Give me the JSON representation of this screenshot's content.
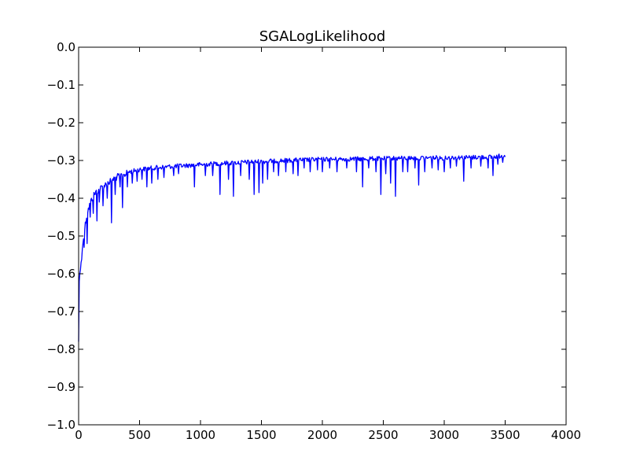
{
  "chart_data": {
    "type": "line",
    "title": "SGALogLikelihood",
    "xlabel": "",
    "ylabel": "",
    "xlim": [
      0,
      4000
    ],
    "ylim": [
      -1.0,
      0.0
    ],
    "x_ticks": [
      0,
      500,
      1000,
      1500,
      2000,
      2500,
      3000,
      3500,
      4000
    ],
    "x_tick_labels": [
      "0",
      "500",
      "1000",
      "1500",
      "2000",
      "2500",
      "3000",
      "3500",
      "4000"
    ],
    "y_ticks": [
      0.0,
      -0.1,
      -0.2,
      -0.3,
      -0.4,
      -0.5,
      -0.6,
      -0.7,
      -0.8,
      -0.9,
      -1.0
    ],
    "y_tick_labels": [
      "0.0",
      "−0.1",
      "−0.2",
      "−0.3",
      "−0.4",
      "−0.5",
      "−0.6",
      "−0.7",
      "−0.8",
      "−0.9",
      "−1.0"
    ],
    "grid": false,
    "color": "#0000ff",
    "series": [
      {
        "x": [
          0,
          5,
          10,
          15,
          20,
          25,
          30,
          40,
          50,
          60,
          70,
          80,
          90,
          100,
          120,
          140,
          160,
          180,
          200,
          250,
          300,
          350,
          400,
          450,
          500,
          600,
          700,
          800,
          900,
          1000,
          1100,
          1200,
          1300,
          1400,
          1500,
          1600,
          1700,
          1800,
          1900,
          2000,
          2100,
          2200,
          2300,
          2400,
          2500,
          2600,
          2700,
          2800,
          2900,
          3000,
          3100,
          3200,
          3300,
          3400,
          3500
        ],
        "y": [
          -0.78,
          -0.62,
          -0.6,
          -0.59,
          -0.57,
          -0.55,
          -0.53,
          -0.49,
          -0.47,
          -0.45,
          -0.43,
          -0.42,
          -0.41,
          -0.4,
          -0.385,
          -0.375,
          -0.37,
          -0.365,
          -0.36,
          -0.348,
          -0.337,
          -0.33,
          -0.325,
          -0.322,
          -0.318,
          -0.314,
          -0.311,
          -0.309,
          -0.307,
          -0.305,
          -0.303,
          -0.301,
          -0.3,
          -0.298,
          -0.297,
          -0.295,
          -0.294,
          -0.293,
          -0.292,
          -0.291,
          -0.291,
          -0.29,
          -0.29,
          -0.289,
          -0.289,
          -0.288,
          -0.288,
          -0.287,
          -0.287,
          -0.287,
          -0.286,
          -0.286,
          -0.285,
          -0.285,
          -0.28
        ]
      }
    ],
    "dips": [
      [
        45,
        -0.53
      ],
      [
        70,
        -0.52
      ],
      [
        95,
        -0.45
      ],
      [
        120,
        -0.44
      ],
      [
        150,
        -0.46
      ],
      [
        170,
        -0.41
      ],
      [
        200,
        -0.42
      ],
      [
        235,
        -0.4
      ],
      [
        270,
        -0.465
      ],
      [
        300,
        -0.39
      ],
      [
        340,
        -0.37
      ],
      [
        360,
        -0.425
      ],
      [
        400,
        -0.37
      ],
      [
        440,
        -0.36
      ],
      [
        480,
        -0.355
      ],
      [
        520,
        -0.35
      ],
      [
        560,
        -0.37
      ],
      [
        600,
        -0.36
      ],
      [
        650,
        -0.35
      ],
      [
        700,
        -0.345
      ],
      [
        780,
        -0.34
      ],
      [
        820,
        -0.335
      ],
      [
        950,
        -0.37
      ],
      [
        1040,
        -0.34
      ],
      [
        1100,
        -0.34
      ],
      [
        1160,
        -0.39
      ],
      [
        1230,
        -0.35
      ],
      [
        1270,
        -0.395
      ],
      [
        1330,
        -0.34
      ],
      [
        1400,
        -0.35
      ],
      [
        1440,
        -0.39
      ],
      [
        1480,
        -0.385
      ],
      [
        1510,
        -0.36
      ],
      [
        1550,
        -0.35
      ],
      [
        1600,
        -0.33
      ],
      [
        1640,
        -0.34
      ],
      [
        1700,
        -0.33
      ],
      [
        1760,
        -0.335
      ],
      [
        1800,
        -0.34
      ],
      [
        1850,
        -0.32
      ],
      [
        1900,
        -0.33
      ],
      [
        1960,
        -0.325
      ],
      [
        2000,
        -0.33
      ],
      [
        2060,
        -0.32
      ],
      [
        2120,
        -0.33
      ],
      [
        2200,
        -0.32
      ],
      [
        2280,
        -0.33
      ],
      [
        2330,
        -0.37
      ],
      [
        2380,
        -0.32
      ],
      [
        2440,
        -0.33
      ],
      [
        2480,
        -0.39
      ],
      [
        2520,
        -0.335
      ],
      [
        2560,
        -0.36
      ],
      [
        2600,
        -0.395
      ],
      [
        2660,
        -0.33
      ],
      [
        2700,
        -0.33
      ],
      [
        2760,
        -0.32
      ],
      [
        2790,
        -0.365
      ],
      [
        2840,
        -0.33
      ],
      [
        2900,
        -0.32
      ],
      [
        2950,
        -0.325
      ],
      [
        3000,
        -0.33
      ],
      [
        3050,
        -0.32
      ],
      [
        3100,
        -0.315
      ],
      [
        3160,
        -0.355
      ],
      [
        3220,
        -0.32
      ],
      [
        3300,
        -0.315
      ],
      [
        3360,
        -0.32
      ],
      [
        3400,
        -0.34
      ],
      [
        3440,
        -0.31
      ],
      [
        3480,
        -0.305
      ]
    ]
  }
}
